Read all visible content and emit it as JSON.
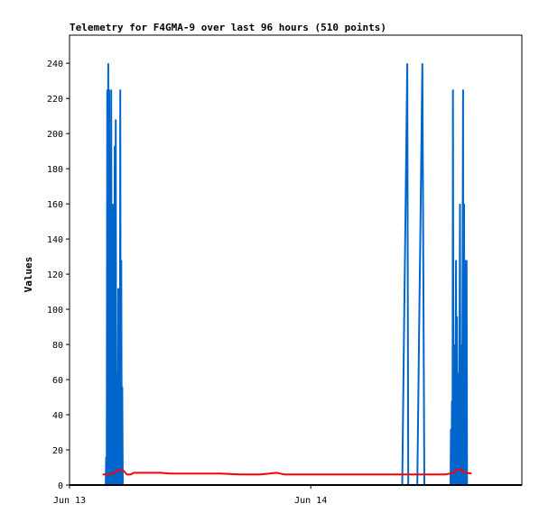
{
  "chart_data": {
    "type": "line",
    "title": "Telemetry for F4GMA-9 over last 96 hours (510 points)",
    "xlabel": "",
    "ylabel": "Values",
    "x_range_hours": [
      0,
      45
    ],
    "x_ticks": [
      {
        "label": "Jun 13",
        "hour": 0
      },
      {
        "label": "Jun 14",
        "hour": 24
      }
    ],
    "ylim": [
      0,
      256
    ],
    "y_ticks": [
      0,
      20,
      40,
      60,
      80,
      100,
      120,
      140,
      160,
      180,
      200,
      220,
      240
    ],
    "grid": false,
    "legend": "none",
    "series": [
      {
        "color": "#0066cc",
        "points": [
          [
            3.6,
            0
          ],
          [
            3.65,
            16
          ],
          [
            3.7,
            0
          ],
          [
            3.75,
            225
          ],
          [
            3.8,
            0
          ],
          [
            3.85,
            240
          ],
          [
            3.9,
            0
          ],
          [
            3.95,
            225
          ],
          [
            4.0,
            0
          ],
          [
            4.05,
            145
          ],
          [
            4.1,
            0
          ],
          [
            4.15,
            225
          ],
          [
            4.2,
            0
          ],
          [
            4.25,
            16
          ],
          [
            4.3,
            0
          ],
          [
            4.35,
            160
          ],
          [
            4.4,
            0
          ],
          [
            4.5,
            193
          ],
          [
            4.55,
            0
          ],
          [
            4.6,
            208
          ],
          [
            4.65,
            0
          ],
          [
            4.75,
            64
          ],
          [
            4.8,
            0
          ],
          [
            4.85,
            112
          ],
          [
            4.9,
            0
          ],
          [
            4.95,
            112
          ],
          [
            5.0,
            0
          ],
          [
            5.05,
            225
          ],
          [
            5.1,
            0
          ],
          [
            5.15,
            128
          ],
          [
            5.2,
            0
          ],
          [
            5.25,
            56
          ],
          [
            5.3,
            0
          ],
          [
            33.1,
            0
          ],
          [
            33.2,
            48
          ],
          [
            33.3,
            96
          ],
          [
            33.4,
            144
          ],
          [
            33.5,
            192
          ],
          [
            33.6,
            240
          ],
          [
            33.7,
            0
          ],
          [
            34.6,
            0
          ],
          [
            34.7,
            48
          ],
          [
            34.8,
            96
          ],
          [
            34.9,
            144
          ],
          [
            35.0,
            192
          ],
          [
            35.1,
            240
          ],
          [
            35.2,
            120
          ],
          [
            35.3,
            0
          ],
          [
            37.9,
            0
          ],
          [
            37.95,
            32
          ],
          [
            38.0,
            0
          ],
          [
            38.05,
            48
          ],
          [
            38.1,
            0
          ],
          [
            38.15,
            225
          ],
          [
            38.2,
            0
          ],
          [
            38.3,
            80
          ],
          [
            38.35,
            0
          ],
          [
            38.45,
            128
          ],
          [
            38.5,
            0
          ],
          [
            38.55,
            96
          ],
          [
            38.6,
            0
          ],
          [
            38.7,
            64
          ],
          [
            38.75,
            0
          ],
          [
            38.85,
            160
          ],
          [
            38.9,
            0
          ],
          [
            39.0,
            80
          ],
          [
            39.05,
            0
          ],
          [
            39.15,
            225
          ],
          [
            39.2,
            0
          ],
          [
            39.25,
            160
          ],
          [
            39.3,
            0
          ],
          [
            39.4,
            128
          ],
          [
            39.45,
            0
          ],
          [
            39.5,
            128
          ],
          [
            39.55,
            0
          ]
        ]
      },
      {
        "color": "#ff0000",
        "points": [
          [
            3.3,
            6
          ],
          [
            3.9,
            6
          ],
          [
            4.2,
            6.5
          ],
          [
            4.5,
            7
          ],
          [
            4.8,
            8.5
          ],
          [
            5.1,
            8.5
          ],
          [
            5.4,
            8
          ],
          [
            5.7,
            6
          ],
          [
            6.1,
            6
          ],
          [
            6.4,
            7
          ],
          [
            8.0,
            7
          ],
          [
            9.0,
            7
          ],
          [
            10.0,
            6.5
          ],
          [
            12.0,
            6.5
          ],
          [
            15.0,
            6.5
          ],
          [
            17.0,
            6
          ],
          [
            19.0,
            6
          ],
          [
            19.9,
            6.5
          ],
          [
            20.6,
            7
          ],
          [
            21.4,
            6
          ],
          [
            24.0,
            6
          ],
          [
            27.0,
            6
          ],
          [
            30.0,
            6
          ],
          [
            33.0,
            6
          ],
          [
            36.0,
            6
          ],
          [
            37.4,
            6
          ],
          [
            37.8,
            6.5
          ],
          [
            38.2,
            7
          ],
          [
            38.6,
            9
          ],
          [
            39.0,
            8.5
          ],
          [
            39.4,
            7
          ],
          [
            40.0,
            6.5
          ]
        ]
      },
      {
        "color": "#000000",
        "points": [
          [
            0,
            0
          ],
          [
            45,
            0
          ]
        ]
      }
    ]
  }
}
